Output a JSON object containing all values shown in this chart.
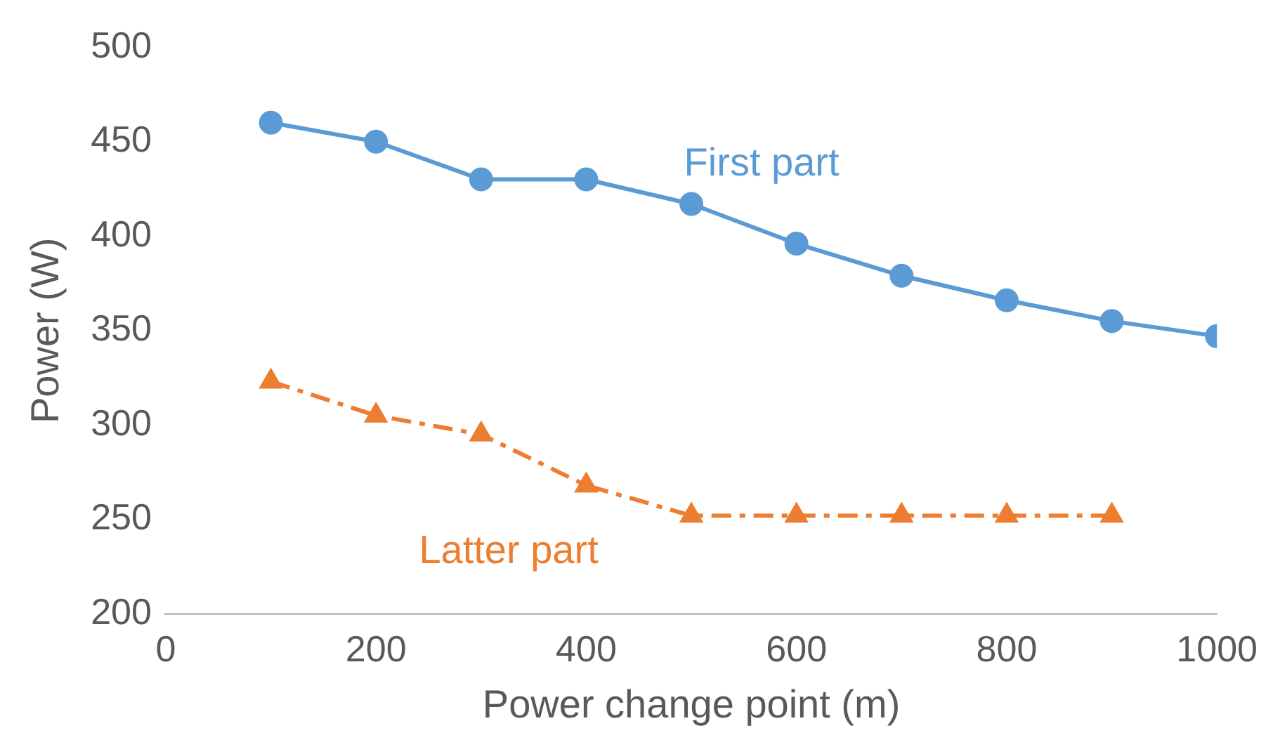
{
  "chart_data": {
    "type": "line",
    "xlabel": "Power change point (m)",
    "ylabel": "Power (W)",
    "x": [
      100,
      200,
      300,
      400,
      500,
      600,
      700,
      800,
      900,
      1000
    ],
    "series": [
      {
        "name": "First part",
        "color": "#5b9bd5",
        "marker": "circle",
        "line_style": "solid",
        "values": [
          460,
          450,
          430,
          430,
          417,
          396,
          379,
          366,
          355,
          347
        ]
      },
      {
        "name": "Latter part",
        "color": "#ed7d31",
        "marker": "triangle",
        "line_style": "dashed",
        "values": [
          323,
          305,
          295,
          268,
          252,
          252,
          252,
          252,
          252,
          null
        ]
      }
    ],
    "xlim": [
      0,
      1000
    ],
    "xticks": [
      0,
      200,
      400,
      600,
      800,
      1000
    ],
    "ylim": [
      200,
      500
    ],
    "yticks": [
      200,
      250,
      300,
      350,
      400,
      450,
      500
    ],
    "grid": false,
    "legend": false
  }
}
